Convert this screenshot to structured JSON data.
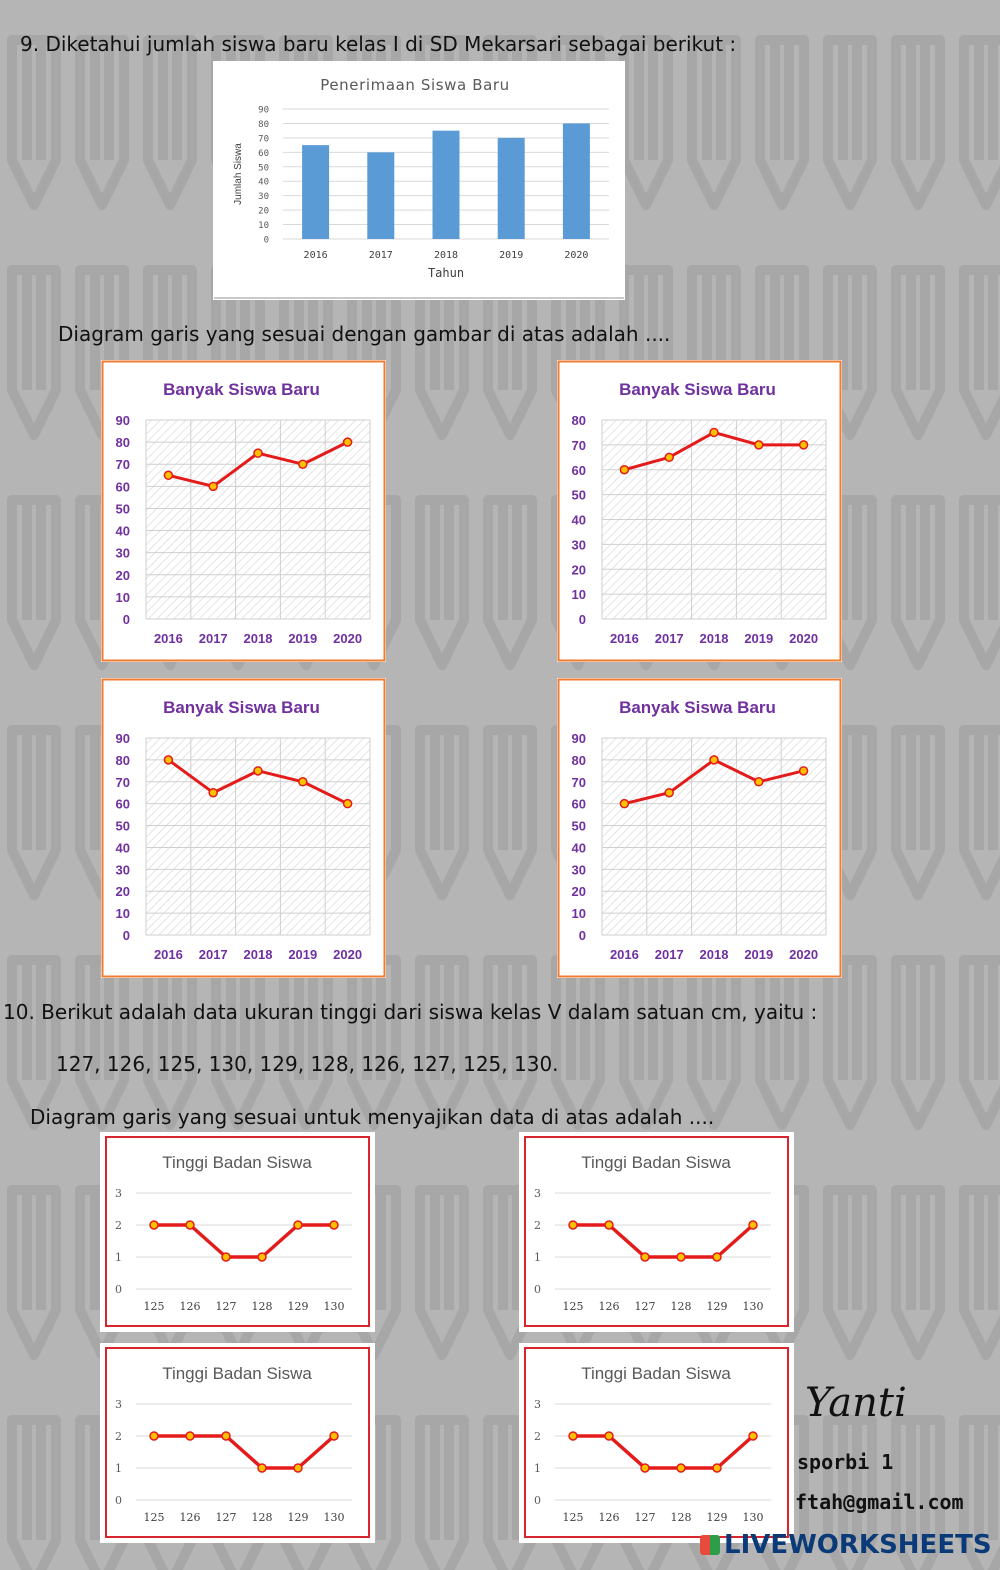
{
  "texts": {
    "q9": "9. Diketahui jumlah siswa baru kelas I di SD Mekarsari sebagai berikut :",
    "q9_prompt": "Diagram garis yang sesuai dengan gambar di atas adalah ....",
    "q10": "10. Berikut adalah data ukuran tinggi dari siswa kelas V dalam satuan cm, yaitu :",
    "q10_data": "127, 126, 125, 130, 129, 128, 126, 127, 125, 130.",
    "q10_prompt": "Diagram garis yang sesuai untuk menyajikan data di atas adalah ...."
  },
  "signature": {
    "name": "Yanti",
    "line1": "sporbi 1",
    "line2": "ftah@gmail.com"
  },
  "watermark": "LIVEWORKSHEETS",
  "colors": {
    "bar": "#5b9bd5",
    "line": "#e31b1b",
    "marker_fill": "#ffc000",
    "purple_text": "#7030a0",
    "orange_border": "#ed7d31",
    "red_border": "#d9252e"
  },
  "chart_data": [
    {
      "id": "bar",
      "type": "bar",
      "title": "Penerimaan Siswa Baru",
      "xlabel": "Tahun",
      "ylabel": "Jumlah Siswa",
      "categories": [
        "2016",
        "2017",
        "2018",
        "2019",
        "2020"
      ],
      "values": [
        65,
        60,
        75,
        70,
        80
      ],
      "ylim": [
        0,
        90
      ],
      "yticks": [
        0,
        10,
        20,
        30,
        40,
        50,
        60,
        70,
        80,
        90
      ],
      "grid": true
    },
    {
      "id": "l9a",
      "type": "line",
      "title": "Banyak Siswa Baru",
      "categories": [
        "2016",
        "2017",
        "2018",
        "2019",
        "2020"
      ],
      "values": [
        65,
        60,
        75,
        70,
        80
      ],
      "ylim": [
        0,
        90
      ],
      "yticks": [
        0,
        10,
        20,
        30,
        40,
        50,
        60,
        70,
        80,
        90
      ],
      "grid": true
    },
    {
      "id": "l9b",
      "type": "line",
      "title": "Banyak Siswa Baru",
      "categories": [
        "2016",
        "2017",
        "2018",
        "2019",
        "2020"
      ],
      "values": [
        60,
        65,
        75,
        70,
        70
      ],
      "ylim": [
        0,
        80
      ],
      "yticks": [
        0,
        10,
        20,
        30,
        40,
        50,
        60,
        70,
        80
      ],
      "grid": true
    },
    {
      "id": "l9c",
      "type": "line",
      "title": "Banyak Siswa Baru",
      "categories": [
        "2016",
        "2017",
        "2018",
        "2019",
        "2020"
      ],
      "values": [
        80,
        65,
        75,
        70,
        60
      ],
      "ylim": [
        0,
        90
      ],
      "yticks": [
        0,
        10,
        20,
        30,
        40,
        50,
        60,
        70,
        80,
        90
      ],
      "grid": true
    },
    {
      "id": "l9d",
      "type": "line",
      "title": "Banyak Siswa Baru",
      "categories": [
        "2016",
        "2017",
        "2018",
        "2019",
        "2020"
      ],
      "values": [
        60,
        65,
        80,
        70,
        75
      ],
      "ylim": [
        0,
        90
      ],
      "yticks": [
        0,
        10,
        20,
        30,
        40,
        50,
        60,
        70,
        80,
        90
      ],
      "grid": true
    },
    {
      "id": "l10a",
      "type": "line",
      "title": "Tinggi Badan Siswa",
      "categories": [
        "125",
        "126",
        "127",
        "128",
        "129",
        "130"
      ],
      "values": [
        2,
        2,
        1,
        1,
        2,
        2
      ],
      "ylim": [
        0,
        3
      ],
      "yticks": [
        0,
        1,
        2,
        3
      ],
      "grid": true
    },
    {
      "id": "l10b",
      "type": "line",
      "title": "Tinggi Badan Siswa",
      "categories": [
        "125",
        "126",
        "127",
        "128",
        "129",
        "130"
      ],
      "values": [
        2,
        2,
        1,
        1,
        1,
        2
      ],
      "ylim": [
        0,
        3
      ],
      "yticks": [
        0,
        1,
        2,
        3
      ],
      "grid": true
    },
    {
      "id": "l10c",
      "type": "line",
      "title": "Tinggi Badan Siswa",
      "categories": [
        "125",
        "126",
        "127",
        "128",
        "129",
        "130"
      ],
      "values": [
        2,
        2,
        2,
        1,
        1,
        2
      ],
      "ylim": [
        0,
        3
      ],
      "yticks": [
        0,
        1,
        2,
        3
      ],
      "grid": true
    },
    {
      "id": "l10d",
      "type": "line",
      "title": "Tinggi Badan Siswa",
      "categories": [
        "125",
        "126",
        "127",
        "128",
        "129",
        "130"
      ],
      "values": [
        2,
        2,
        1,
        1,
        1,
        2
      ],
      "ylim": [
        0,
        3
      ],
      "yticks": [
        0,
        1,
        2,
        3
      ],
      "grid": true
    }
  ]
}
